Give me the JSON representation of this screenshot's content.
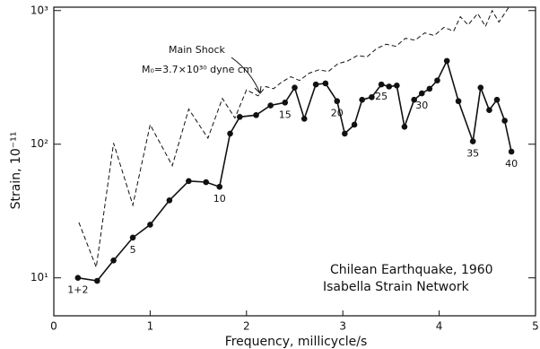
{
  "chart_data": {
    "type": "line",
    "log_y": true,
    "x_label": "Frequency, millicycle/s",
    "y_label": "Strain, 10⁻¹¹",
    "xlim": [
      0,
      5
    ],
    "xticks": [
      0,
      1,
      2,
      3,
      4,
      5
    ],
    "ylim": [
      5.2,
      1060
    ],
    "yticks": [
      {
        "value": 10,
        "label": "10¹"
      },
      {
        "value": 100,
        "label": "10²"
      },
      {
        "value": 1000,
        "label": "10³"
      }
    ],
    "annotations": [
      "Main Shock",
      "M₀=3.7×10³⁰ dyne cm",
      "Chilean Earthquake, 1960",
      "Isabella Strain Network"
    ],
    "series": [
      {
        "color": "#111111",
        "style": "dashed",
        "x": [
          0.26,
          0.44,
          0.62,
          0.82,
          1.0,
          1.23,
          1.4,
          1.6,
          1.75,
          1.88,
          2.0,
          2.12,
          2.2,
          2.28,
          2.36,
          2.46,
          2.55,
          2.65,
          2.75,
          2.85,
          2.95,
          3.05,
          3.15,
          3.25,
          3.35,
          3.45,
          3.55,
          3.65,
          3.75,
          3.85,
          3.95,
          4.05,
          4.15,
          4.22,
          4.3,
          4.4,
          4.48,
          4.55,
          4.62,
          4.72
        ],
        "values": [
          26,
          12,
          102,
          35,
          140,
          69,
          183,
          111,
          220,
          157,
          255,
          230,
          270,
          260,
          290,
          320,
          300,
          340,
          360,
          350,
          400,
          420,
          460,
          450,
          520,
          560,
          540,
          620,
          600,
          680,
          650,
          750,
          700,
          900,
          780,
          950,
          760,
          1000,
          820,
          1050
        ]
      },
      {
        "color": "#111111",
        "style": "solid",
        "x": [
          0.25,
          0.45,
          0.62,
          0.82,
          1.0,
          1.2,
          1.4,
          1.58,
          1.72,
          1.83,
          1.93,
          2.1,
          2.25,
          2.4,
          2.5,
          2.6,
          2.72,
          2.82,
          2.94,
          3.02,
          3.12,
          3.2,
          3.3,
          3.4,
          3.48,
          3.56,
          3.64,
          3.74,
          3.82,
          3.9,
          3.98,
          4.08,
          4.2,
          4.35,
          4.43,
          4.52,
          4.6,
          4.68,
          4.75
        ],
        "values": [
          10,
          9.5,
          13.5,
          20,
          25,
          38,
          53,
          52,
          48,
          120,
          160,
          165,
          195,
          205,
          265,
          155,
          280,
          285,
          210,
          120,
          140,
          215,
          225,
          280,
          270,
          275,
          135,
          215,
          240,
          260,
          300,
          420,
          210,
          105,
          265,
          180,
          215,
          150,
          88
        ],
        "point_labels": [
          "1+2",
          null,
          null,
          "5",
          null,
          null,
          null,
          null,
          "10",
          null,
          null,
          null,
          null,
          "15",
          null,
          null,
          null,
          null,
          "20",
          null,
          null,
          null,
          null,
          "25",
          null,
          null,
          null,
          null,
          "30",
          null,
          null,
          null,
          null,
          "35",
          null,
          null,
          null,
          null,
          "40"
        ]
      }
    ]
  }
}
